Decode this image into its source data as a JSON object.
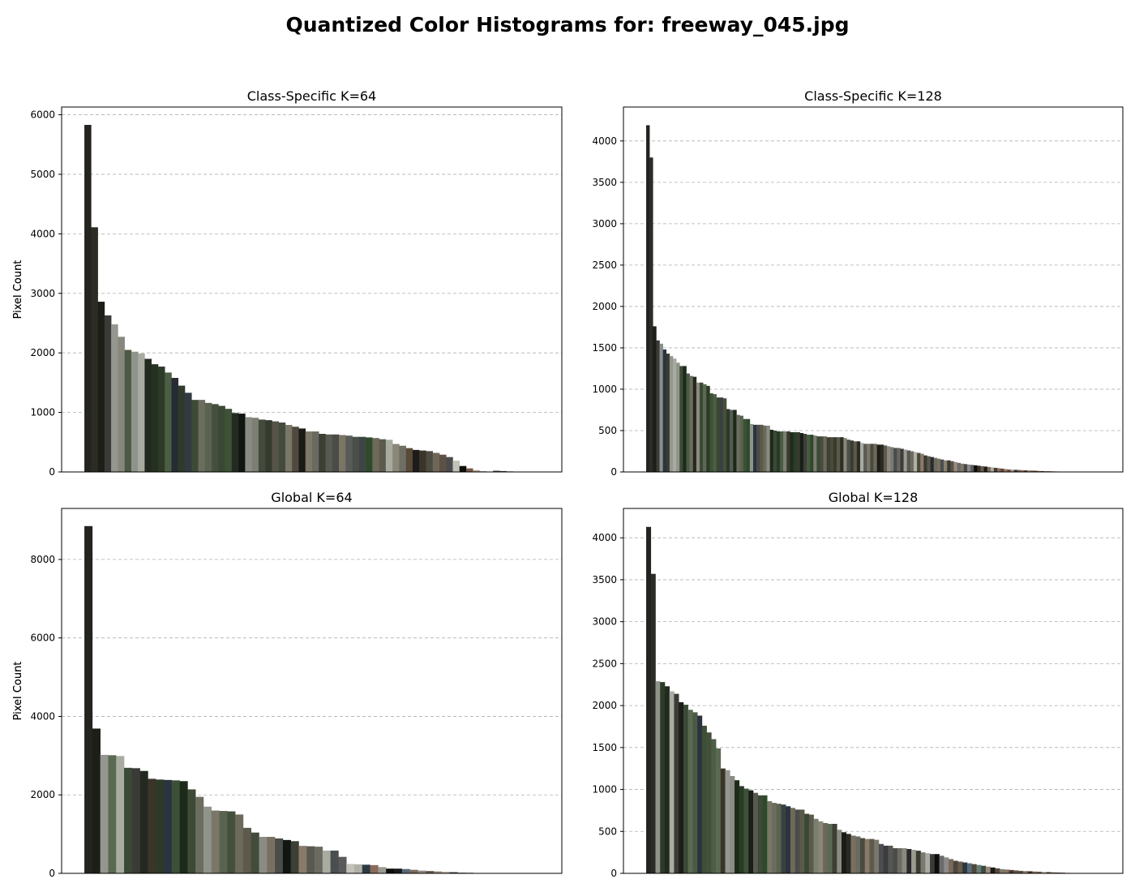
{
  "suptitle": "Quantized Color Histograms for: freeway_045.jpg",
  "chart_data": [
    {
      "type": "bar",
      "title": "Class-Specific K=64",
      "xlabel": "",
      "ylabel": "Pixel Count",
      "ylim": [
        0,
        6130
      ],
      "yticks": [
        0,
        1000,
        2000,
        3000,
        4000,
        5000,
        6000
      ],
      "grid": "y-dashed",
      "values": [
        5830,
        4110,
        2860,
        2630,
        2480,
        2270,
        2050,
        2020,
        1990,
        1900,
        1810,
        1770,
        1670,
        1580,
        1450,
        1330,
        1210,
        1210,
        1160,
        1140,
        1110,
        1060,
        990,
        980,
        920,
        910,
        880,
        870,
        850,
        830,
        790,
        760,
        730,
        680,
        680,
        640,
        630,
        630,
        620,
        610,
        590,
        590,
        580,
        570,
        550,
        540,
        470,
        440,
        400,
        370,
        360,
        350,
        320,
        290,
        250,
        190,
        100,
        60,
        30,
        10,
        5,
        20,
        15,
        10
      ],
      "colors": [
        "#24231f",
        "#2b2c23",
        "#1c1e18",
        "#3a3a36",
        "#969690",
        "#87877e",
        "#4a5a44",
        "#8f948a",
        "#a7aba0",
        "#222a20",
        "#253021",
        "#2c3a27",
        "#4c5f45",
        "#262c33",
        "#2f3a2d",
        "#343a42",
        "#3c4a36",
        "#6b6d5e",
        "#5a6250",
        "#44503d",
        "#3a4734",
        "#3d5236",
        "#252a21",
        "#101611",
        "#8a8c84",
        "#7d7f76",
        "#434c3a",
        "#343c2f",
        "#565448",
        "#444a3c",
        "#7a7668",
        "#504a3e",
        "#1a1a16",
        "#7d7867",
        "#696a60",
        "#3c3f34",
        "#585a52",
        "#4a4c47",
        "#7a7565",
        "#585b57",
        "#495049",
        "#3f4544",
        "#2e4a2c",
        "#6e6a5a",
        "#5c5a4c",
        "#a7aba0",
        "#8a8678",
        "#6f6e64",
        "#5a4a3a",
        "#1c1d1a",
        "#3a3528",
        "#4e4b42",
        "#6e6657",
        "#5e5044",
        "#4a4b4c",
        "#c2c2b8",
        "#0d0d0b",
        "#7a5a4a",
        "#b09c8a",
        "#5a5a4a",
        "#7a7a72",
        "#3a3a3a",
        "#2a3a40",
        "#8a7a6a"
      ]
    },
    {
      "type": "bar",
      "title": "Class-Specific K=128",
      "xlabel": "",
      "ylabel": "Pixel Count",
      "ylim": [
        0,
        4410
      ],
      "yticks": [
        0,
        500,
        1000,
        1500,
        2000,
        2500,
        3000,
        3500,
        4000
      ],
      "grid": "y-dashed",
      "values": [
        4190,
        3800,
        1760,
        1590,
        1550,
        1480,
        1430,
        1400,
        1370,
        1320,
        1280,
        1280,
        1190,
        1160,
        1150,
        1080,
        1080,
        1060,
        1040,
        950,
        940,
        900,
        900,
        890,
        760,
        750,
        750,
        690,
        680,
        640,
        640,
        580,
        570,
        570,
        570,
        560,
        560,
        510,
        500,
        490,
        490,
        490,
        490,
        480,
        480,
        480,
        470,
        460,
        450,
        450,
        440,
        430,
        430,
        430,
        420,
        420,
        420,
        420,
        420,
        410,
        390,
        380,
        370,
        370,
        350,
        340,
        340,
        340,
        340,
        330,
        330,
        320,
        310,
        300,
        290,
        290,
        280,
        270,
        260,
        250,
        240,
        230,
        220,
        200,
        190,
        180,
        170,
        160,
        150,
        140,
        140,
        130,
        120,
        110,
        100,
        95,
        90,
        85,
        80,
        75,
        70,
        65,
        60,
        55,
        50,
        45,
        40,
        35,
        30,
        28,
        26,
        24,
        22,
        20,
        18,
        16,
        14,
        12,
        10,
        9,
        8,
        7,
        6,
        5,
        4,
        3,
        2,
        1
      ],
      "colors": [
        "#24231f",
        "#2b2c28",
        "#1c1e18",
        "#3a3a36",
        "#8a8e8a",
        "#2a3340",
        "#373c30",
        "#969690",
        "#a7aba0",
        "#8f948a",
        "#3c4a36",
        "#1c2a1a",
        "#4a5a44",
        "#6b6d5e",
        "#222a20",
        "#8f8a7a",
        "#3a4a36",
        "#5a6a52",
        "#2c3a27",
        "#3d5236",
        "#4c5f45",
        "#3a4734",
        "#3a4040",
        "#44503d",
        "#2a3a27",
        "#585a52",
        "#1c2a1a",
        "#6b6d5e",
        "#5a6250",
        "#3c5036",
        "#2e4a2c",
        "#8f948a",
        "#2a3340",
        "#4a4c47",
        "#5a5a4a",
        "#6e6a5a",
        "#8a8c84",
        "#1e2a1c",
        "#3a4a36",
        "#273a24",
        "#4a5a44",
        "#7a8070",
        "#3a3a2e",
        "#202a1e",
        "#2a3b28",
        "#353b2e",
        "#1a1e18",
        "#3c4038",
        "#4a5a40",
        "#2d4a2b",
        "#7a7a72",
        "#3c4a35",
        "#4a4c40",
        "#6a6858",
        "#3c3f34",
        "#4a4a3a",
        "#3a3a2e",
        "#5a5a4a",
        "#2e2e26",
        "#8a8678",
        "#4c5048",
        "#3a3c30",
        "#5c5a4c",
        "#2a2c24",
        "#a7aba0",
        "#5a5a52",
        "#7a7668",
        "#4a4a40",
        "#6e6a5a",
        "#1c1d1a",
        "#2a2a24",
        "#5e5a4c",
        "#8a8a80",
        "#7a7a70",
        "#4a4c4c",
        "#6a6660",
        "#3a3c40",
        "#9a9a90",
        "#585650",
        "#6e6c62",
        "#b0b0a8",
        "#4a4a3a",
        "#8a7a6a",
        "#3a3a30",
        "#5a5850",
        "#2a2a2a",
        "#6a6a60",
        "#7a7060",
        "#4a4e50",
        "#8a8070",
        "#3c3a34",
        "#5a5448",
        "#9a8a7a",
        "#6a6a6a",
        "#7a786c",
        "#4a4640",
        "#8a8a8a",
        "#5a5a5a",
        "#0d0d0b",
        "#3a3028",
        "#6a5a4a",
        "#1a1a1a",
        "#7a6a5a",
        "#aaaaa0",
        "#4a3a30",
        "#8a6a5a",
        "#5a4a3a",
        "#9a7a6a",
        "#6a5040",
        "#b09c8a",
        "#3a3a3a",
        "#7a6050",
        "#8a7060",
        "#5a4030",
        "#9a8070",
        "#6a4a3a",
        "#4a3a2a",
        "#7a5a4a",
        "#3a2a20",
        "#8a6050",
        "#5a3a2a",
        "#6a5040",
        "#7a6a5a",
        "#4a4030",
        "#8a7a6a",
        "#9a8a7a",
        "#5a5040",
        "#6a6050"
      ]
    },
    {
      "type": "bar",
      "title": "Global K=64",
      "xlabel": "",
      "ylabel": "Pixel Count",
      "ylim": [
        0,
        9300
      ],
      "yticks": [
        0,
        2000,
        4000,
        6000,
        8000
      ],
      "grid": "y-dashed",
      "values": [
        8850,
        3690,
        3020,
        3010,
        2990,
        2690,
        2680,
        2610,
        2410,
        2390,
        2380,
        2370,
        2350,
        2140,
        1950,
        1700,
        1600,
        1590,
        1580,
        1500,
        1160,
        1040,
        930,
        930,
        890,
        850,
        820,
        700,
        690,
        680,
        580,
        580,
        420,
        240,
        230,
        220,
        210,
        160,
        120,
        120,
        110,
        90,
        70,
        60,
        50,
        40,
        30,
        20,
        15,
        10,
        10,
        8,
        6,
        5
      ],
      "colors": [
        "#24231f",
        "#1c1e18",
        "#969690",
        "#5a6a52",
        "#a7aba0",
        "#3a4a36",
        "#3a3a36",
        "#222a20",
        "#3a3528",
        "#2c3a27",
        "#2a3340",
        "#3c5036",
        "#1c2a1a",
        "#3c4a36",
        "#6b6d5e",
        "#8f948a",
        "#7a7668",
        "#5a6250",
        "#44503d",
        "#6e6a5a",
        "#5c5a4c",
        "#434c3a",
        "#8a8c84",
        "#7a7060",
        "#4a4c47",
        "#101611",
        "#3c3f34",
        "#8a7a6a",
        "#585a52",
        "#6a6a60",
        "#a7aba0",
        "#4a4e50",
        "#5a5a5a",
        "#c2c2b8",
        "#b0b0a8",
        "#2a3a40",
        "#8a6a5a",
        "#9a9a90",
        "#0d0d0b",
        "#1a1a1a",
        "#5a6a7a",
        "#7a6a5a",
        "#8a8a8a",
        "#6a5a4a",
        "#9a8a7a",
        "#aaaaa0",
        "#3a3a3a",
        "#7a7a72",
        "#5a5040",
        "#4a4030",
        "#6a6050",
        "#3a3028",
        "#2a2a2a",
        "#8a7060"
      ]
    },
    {
      "type": "bar",
      "title": "Global K=128",
      "xlabel": "",
      "ylabel": "Pixel Count",
      "ylim": [
        0,
        4350
      ],
      "yticks": [
        0,
        500,
        1000,
        1500,
        2000,
        2500,
        3000,
        3500,
        4000
      ],
      "grid": "y-dashed",
      "values": [
        4130,
        3570,
        2290,
        2280,
        2230,
        2170,
        2140,
        2040,
        2010,
        1950,
        1920,
        1880,
        1760,
        1680,
        1600,
        1490,
        1250,
        1230,
        1160,
        1110,
        1040,
        1010,
        990,
        960,
        930,
        930,
        860,
        840,
        830,
        820,
        800,
        780,
        760,
        760,
        710,
        700,
        650,
        620,
        600,
        590,
        590,
        520,
        490,
        470,
        450,
        440,
        420,
        410,
        410,
        400,
        350,
        330,
        330,
        300,
        300,
        300,
        290,
        280,
        270,
        250,
        240,
        230,
        230,
        210,
        190,
        170,
        150,
        140,
        130,
        120,
        110,
        100,
        90,
        80,
        70,
        60,
        50,
        45,
        40,
        35,
        30,
        28,
        25,
        22,
        20,
        18,
        15,
        12,
        10,
        8,
        6,
        5
      ],
      "colors": [
        "#24231f",
        "#2b2c28",
        "#8f948a",
        "#2c3a27",
        "#222a20",
        "#a7aba0",
        "#3a3a36",
        "#1c1e18",
        "#3a4a36",
        "#5a6a52",
        "#4a5a44",
        "#2a3340",
        "#3c5036",
        "#44503d",
        "#4c5f45",
        "#5a6a52",
        "#3a3528",
        "#969690",
        "#8a8c84",
        "#1c2a1a",
        "#2a3a27",
        "#3d5236",
        "#1a1e18",
        "#585a52",
        "#3c4a36",
        "#2d4a2b",
        "#7a7668",
        "#6b6d5e",
        "#5a6250",
        "#3a4040",
        "#2a3340",
        "#6e6a5a",
        "#4a4c47",
        "#5a5a4a",
        "#3a4734",
        "#5c5a4c",
        "#7a8070",
        "#8a8678",
        "#6a6858",
        "#5a6a52",
        "#3c3f34",
        "#8a8a80",
        "#1a1a16",
        "#2a2a24",
        "#7a7060",
        "#6a6a60",
        "#4a4a40",
        "#8a7a6a",
        "#5e5a4c",
        "#7a786c",
        "#4a4e50",
        "#3a3c40",
        "#585650",
        "#4a4c4c",
        "#6e6c62",
        "#8a8a80",
        "#2a2a2a",
        "#9a9a90",
        "#3a3c30",
        "#7a7a72",
        "#aaaaa0",
        "#3a3a3a",
        "#0d0d0b",
        "#6a6a6a",
        "#8a8a8a",
        "#7a6a5a",
        "#4a4640",
        "#6a5a4a",
        "#2a3a40",
        "#5a6a7a",
        "#4a4a3a",
        "#6a7a70",
        "#3a4a40",
        "#9a8a7a",
        "#1a1a1a",
        "#5a4a3a",
        "#7a7a70",
        "#8a7060",
        "#4a3a30",
        "#6a5040",
        "#5a5040",
        "#9a8070",
        "#3a3028",
        "#8a6a5a",
        "#6a6050",
        "#b0b0a8",
        "#4a4030",
        "#7a5a4a",
        "#5a3a2a",
        "#3a2a20",
        "#8a6050",
        "#6a4a3a"
      ]
    }
  ]
}
